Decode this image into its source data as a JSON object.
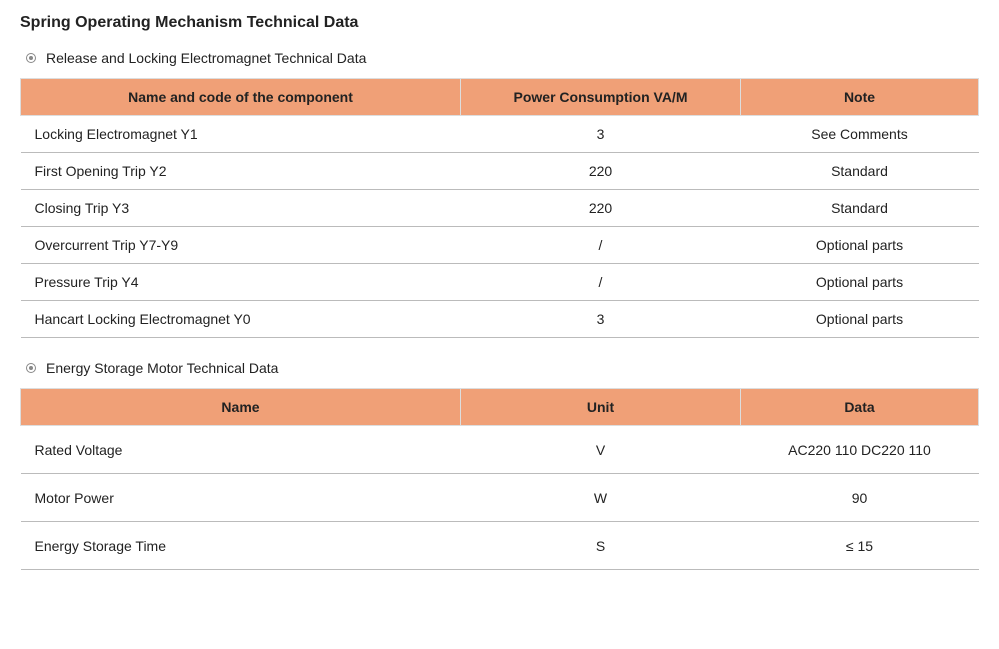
{
  "page": {
    "title": "Spring Operating Mechanism Technical Data"
  },
  "section1": {
    "title": "Release and Locking Electromagnet Technical Data",
    "header_bg": "#f0a077",
    "columns": [
      "Name and code of the component",
      "Power Consumption VA/M",
      "Note"
    ],
    "rows": [
      {
        "name": "Locking Electromagnet Y1",
        "power": "3",
        "note": "See Comments"
      },
      {
        "name": "First Opening Trip    Y2",
        "power": "220",
        "note": "Standard"
      },
      {
        "name": "Closing Trip  Y3",
        "power": "220",
        "note": "Standard"
      },
      {
        "name": "Overcurrent Trip   Y7-Y9",
        "power": "/",
        "note": "Optional parts"
      },
      {
        "name": "Pressure Trip     Y4",
        "power": "/",
        "note": "Optional parts"
      },
      {
        "name": "Hancart Locking Electromagnet  Y0",
        "power": "3",
        "note": "Optional parts"
      }
    ]
  },
  "section2": {
    "title": "Energy Storage Motor Technical Data",
    "header_bg": "#f0a077",
    "columns": [
      "Name",
      "Unit",
      "Data"
    ],
    "rows": [
      {
        "name": "Rated Voltage",
        "unit": "V",
        "data": "AC220 110 DC220 110"
      },
      {
        "name": "Motor Power",
        "unit": "W",
        "data": "90"
      },
      {
        "name": "Energy Storage Time",
        "unit": "S",
        "data": "≤ 15"
      }
    ]
  },
  "styling": {
    "title_fontsize": 16,
    "title_fontweight": 700,
    "section_fontsize": 14,
    "table_header_bg": "#f0a077",
    "table_header_fontweight": 700,
    "table_border_color": "#bbbbbb",
    "body_fontsize": 14,
    "background_color": "#ffffff",
    "text_color": "#222222",
    "bullet_border_color": "#888888"
  }
}
